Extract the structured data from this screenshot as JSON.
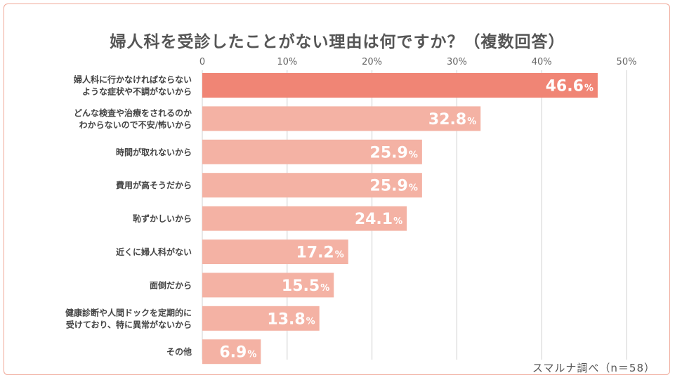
{
  "title": "婦人科を受診したことがない理由は何ですか？（複数回答）",
  "source_note": "スマルナ調べ（n＝58）",
  "colors": {
    "highlight_bar": "#f08575",
    "bar": "#f4b2a4",
    "grid": "#d0d0d0",
    "border": "#f0a898"
  },
  "chart_data": {
    "type": "bar",
    "orientation": "horizontal",
    "title": "婦人科を受診したことがない理由は何ですか？（複数回答）",
    "xlabel": "",
    "ylabel": "",
    "xlim": [
      0,
      50
    ],
    "ticks": [
      0,
      10,
      20,
      30,
      40,
      50
    ],
    "tick_labels": [
      "0",
      "10%",
      "20%",
      "30%",
      "40%",
      "50%"
    ],
    "grid": true,
    "categories": [
      [
        "婦人科に行かなければならない",
        "ような症状や不調がないから"
      ],
      [
        "どんな検査や治療をされるのか",
        "わからないので不安/怖いから"
      ],
      [
        "時間が取れないから"
      ],
      [
        "費用が高そうだから"
      ],
      [
        "恥ずかしいから"
      ],
      [
        "近くに婦人科がない"
      ],
      [
        "面倒だから"
      ],
      [
        "健康診断や人間ドックを定期的に",
        "受けており、特に異常がないから"
      ],
      [
        "その他"
      ]
    ],
    "values": [
      46.6,
      32.8,
      25.9,
      25.9,
      24.1,
      17.2,
      15.5,
      13.8,
      6.9
    ],
    "value_labels": [
      "46.6",
      "32.8",
      "25.9",
      "25.9",
      "24.1",
      "17.2",
      "15.5",
      "13.8",
      "6.9"
    ],
    "unit": "%"
  }
}
